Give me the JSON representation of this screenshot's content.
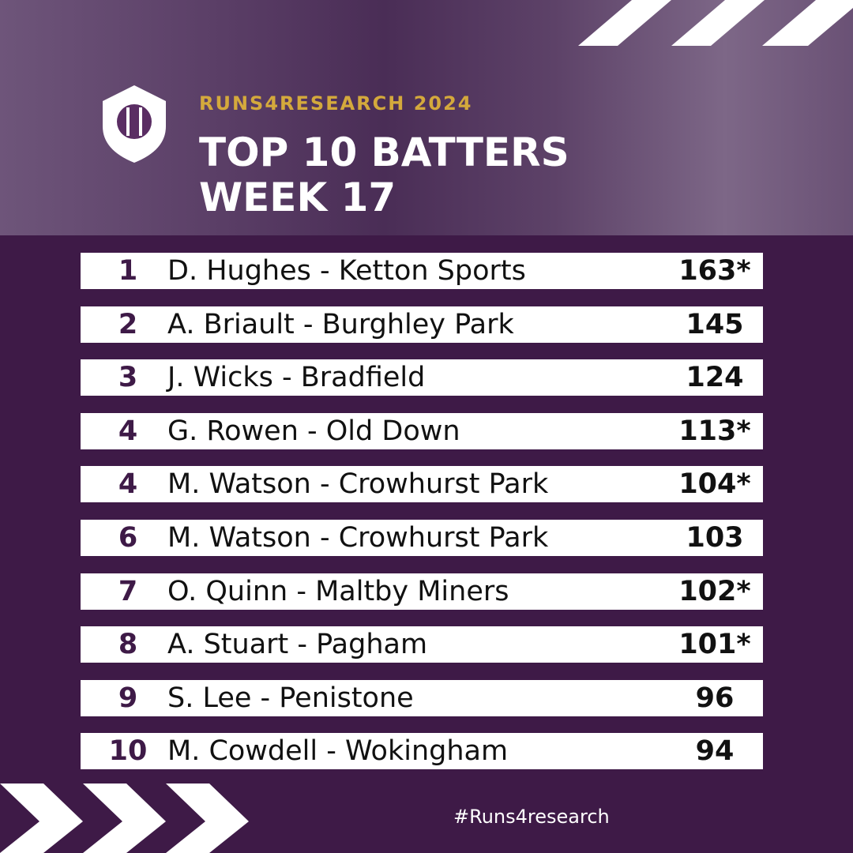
{
  "header": {
    "kicker": "RUNS4RESEARCH 2024",
    "title_lines": [
      "TOP 10 BATTERS",
      "WEEK 17"
    ]
  },
  "table": {
    "rows": [
      [
        "1",
        "D. Hughes - Ketton Sports",
        "163*"
      ],
      [
        "2",
        "A. Briault - Burghley Park",
        "145"
      ],
      [
        "3",
        "J. Wicks - Bradfield",
        "124"
      ],
      [
        "4",
        "G. Rowen - Old Down",
        "113*"
      ],
      [
        "4",
        "M. Watson - Crowhurst Park",
        "104*"
      ],
      [
        "6",
        "M. Watson - Crowhurst Park",
        "103"
      ],
      [
        "7",
        "O. Quinn - Maltby Miners",
        "102*"
      ],
      [
        "8",
        "A. Stuart - Pagham",
        "101*"
      ],
      [
        "9",
        "S. Lee - Penistone",
        "96"
      ],
      [
        "10",
        "M. Cowdell - Wokingham",
        "94"
      ]
    ]
  },
  "footer": {
    "hashtag": "#Runs4research"
  }
}
